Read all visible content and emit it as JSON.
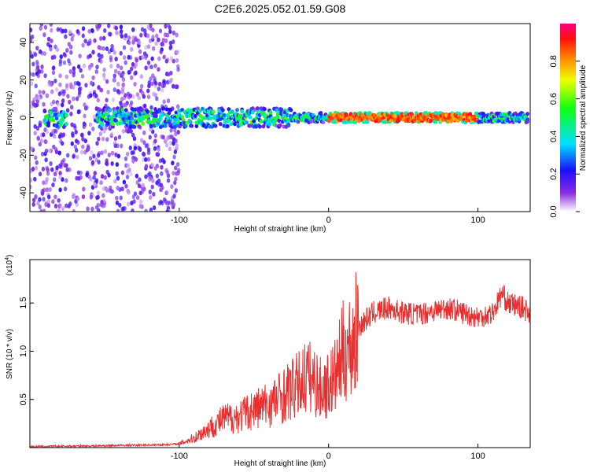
{
  "chart_data": [
    {
      "type": "heatmap",
      "title": "C2E6.2025.052.01.59.G08",
      "xlabel": "Height of straight line (km)",
      "ylabel": "Frequency (Hz)",
      "xlim": [
        -200,
        135
      ],
      "ylim": [
        -50,
        50
      ],
      "x_ticks": [
        -100,
        0,
        100
      ],
      "y_ticks": [
        -40,
        -20,
        0,
        20,
        40
      ],
      "colorbar": {
        "label": "Normalized spectral amplitude",
        "ticks": [
          0.0,
          0.2,
          0.4,
          0.6,
          0.8
        ],
        "range": [
          0,
          1
        ]
      },
      "description_points": {
        "noise_region_x": [
          -200,
          -100
        ],
        "main_ridge_freq": 0,
        "strong_ridge_x": [
          0,
          100
        ],
        "strong_ridge_amplitude": 0.9
      }
    },
    {
      "type": "line",
      "xlabel": "Height of straight line (km)",
      "ylabel": "SNR (10 * v/v)",
      "y_multiplier_label": "(x10",
      "y_multiplier_exp": "4",
      "xlim": [
        -200,
        135
      ],
      "ylim": [
        0,
        1.95
      ],
      "x_ticks": [
        -100,
        0,
        100
      ],
      "y_ticks": [
        0.5,
        1.0,
        1.5
      ],
      "series": [
        {
          "color": "#e83030",
          "x": [
            -200,
            -150,
            -110,
            -100,
            -90,
            -80,
            -70,
            -60,
            -50,
            -40,
            -30,
            -20,
            -15,
            -10,
            -5,
            0,
            5,
            10,
            15,
            20,
            30,
            40,
            50,
            60,
            70,
            80,
            90,
            100,
            110,
            116,
            120,
            130,
            135
          ],
          "y": [
            0.01,
            0.02,
            0.03,
            0.04,
            0.1,
            0.2,
            0.3,
            0.32,
            0.4,
            0.45,
            0.55,
            0.65,
            0.75,
            0.7,
            0.6,
            0.65,
            0.75,
            1.0,
            1.05,
            1.25,
            1.4,
            1.45,
            1.4,
            1.38,
            1.42,
            1.45,
            1.4,
            1.35,
            1.4,
            1.6,
            1.5,
            1.45,
            1.4
          ]
        }
      ]
    }
  ]
}
